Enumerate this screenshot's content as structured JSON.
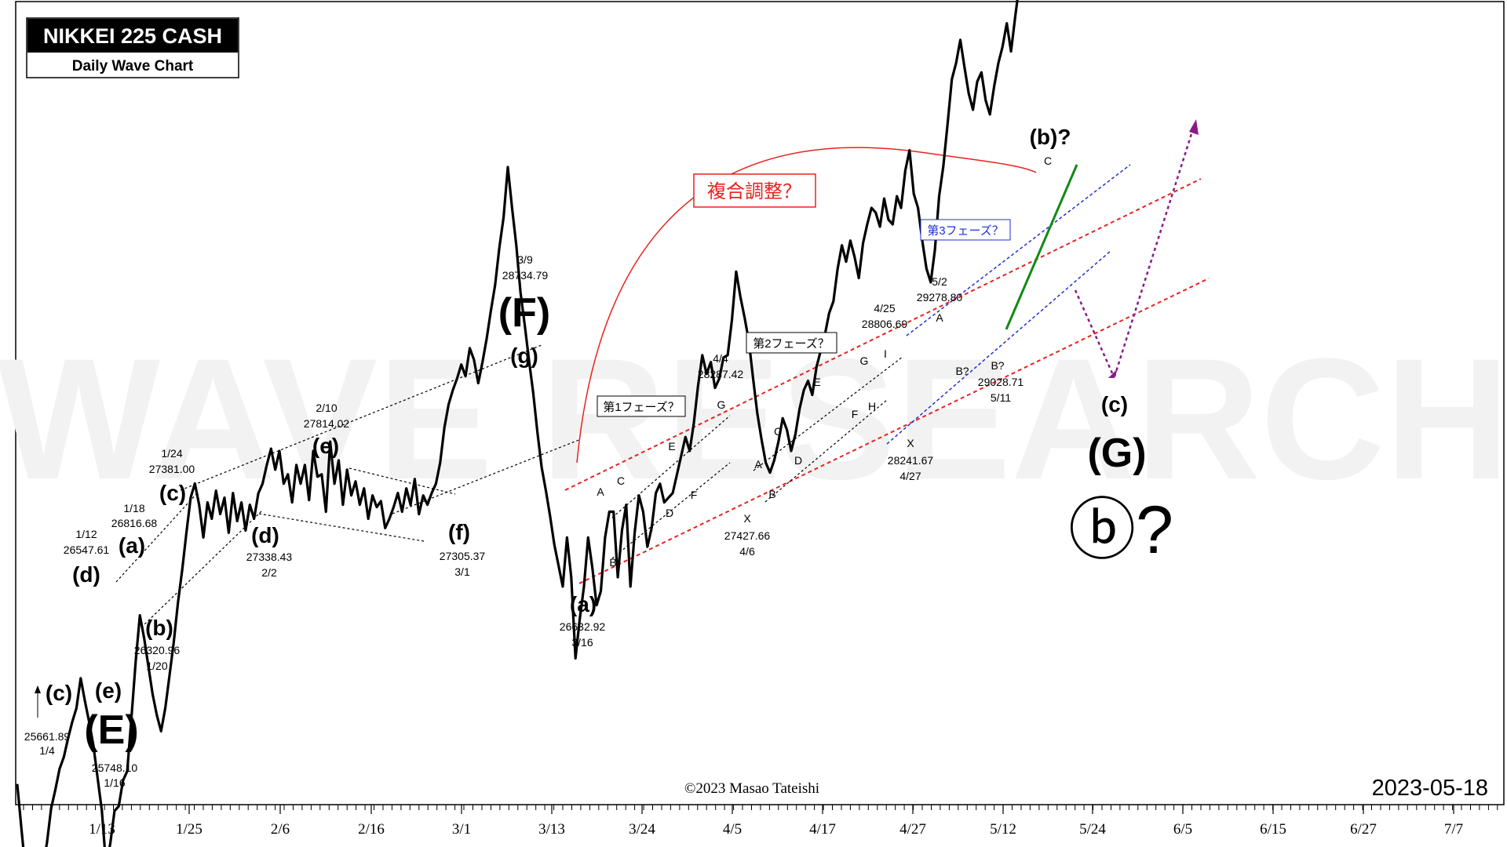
{
  "title_box": {
    "title": "NIKKEI 225 CASH",
    "subtitle": "Daily Wave Chart"
  },
  "watermark": "WAVE RESEARCH",
  "copyright": "©2023 Masao Tateishi",
  "chart_date": "2023-05-18",
  "colors": {
    "price": "#000000",
    "red_channel": "#e8221f",
    "blue_channel": "#1f2fd6",
    "green_line": "#128a12",
    "purple_arrow": "#8a1a8a",
    "complex_label": "#e8221f",
    "phase3_label": "#1f2fd6"
  },
  "chart_data": {
    "type": "line",
    "title": "NIKKEI 225 CASH",
    "subtitle": "Daily Wave Chart",
    "xlabel": "",
    "ylabel": "",
    "x_ticks": [
      "1/13",
      "1/25",
      "2/6",
      "2/16",
      "3/1",
      "3/13",
      "3/24",
      "4/5",
      "4/17",
      "4/27",
      "5/12",
      "5/24",
      "6/5",
      "6/15",
      "6/27",
      "7/7"
    ],
    "series": [
      {
        "values": [
          26094,
          25900,
          25716,
          25661.89,
          25790,
          25720,
          25748.1,
          25840,
          25990,
          26070,
          26160,
          26210,
          26290,
          26360,
          26420,
          26547.61,
          26450,
          26360,
          26260,
          26120,
          25980,
          25748.1,
          25840,
          25980,
          26000,
          26110,
          26150,
          26380,
          26620,
          26816.68,
          26720,
          26600,
          26480,
          26390,
          26320.96,
          26420,
          26560,
          26700,
          26870,
          27010,
          27170,
          27320,
          27381,
          27290,
          27150,
          27300,
          27230,
          27350,
          27250,
          27320,
          27170,
          27340,
          27220,
          27300,
          27180,
          27290,
          27230,
          27338.43,
          27380,
          27460,
          27530,
          27440,
          27520,
          27380,
          27420,
          27300,
          27460,
          27380,
          27460,
          27310,
          27520,
          27410,
          27420,
          27260,
          27560,
          27380,
          27480,
          27290,
          27440,
          27330,
          27390,
          27290,
          27360,
          27230,
          27330,
          27280,
          27305.37,
          27190,
          27230,
          27280,
          27340,
          27260,
          27360,
          27290,
          27400,
          27250,
          27330,
          27290,
          27340,
          27380,
          27470,
          27620,
          27720,
          27780,
          27830,
          27890,
          27840,
          27960,
          27910,
          27810,
          27900,
          28000,
          28120,
          28230,
          28390,
          28520,
          28734.79,
          28560,
          28400,
          28200,
          28060,
          27910,
          27770,
          27600,
          27450,
          27350,
          27240,
          27120,
          27030,
          26940,
          27150,
          26980,
          26632.92,
          26800,
          26940,
          27150,
          27020,
          26860,
          26920,
          27150,
          27260,
          27260,
          26980,
          27180,
          27290,
          26940,
          27170,
          27330,
          27260,
          27110,
          27190,
          27340,
          27380,
          27300,
          27320,
          27340,
          27420,
          27500,
          27580,
          27520,
          27640,
          27800,
          27930,
          27850,
          27900,
          27790,
          27830,
          27920,
          27930,
          28080,
          28287.42,
          28180,
          28090,
          27990,
          27830,
          27680,
          27570,
          27470,
          27427.66,
          27480,
          27560,
          27660,
          27610,
          27520,
          27590,
          27700,
          27780,
          27820,
          27760,
          27880,
          27950,
          28020,
          28110,
          28160,
          28300,
          28400,
          28330,
          28420,
          28350,
          28260,
          28410,
          28490,
          28560,
          28540,
          28480,
          28600,
          28510,
          28490,
          28610,
          28560,
          28720,
          28806.69,
          28620,
          28560,
          28420,
          28300,
          28241.67,
          28380,
          28610,
          28740,
          28920,
          29110,
          29180,
          29278.8,
          29160,
          29050,
          28980,
          29100,
          29140,
          29020,
          28960,
          29080,
          29180,
          29250,
          29350,
          29230,
          29380,
          29520,
          29620,
          29880,
          30020,
          29960,
          30140,
          30240,
          30540,
          30650
        ]
      }
    ],
    "annotations": [
      {
        "date": "1/4",
        "value": "25661.89",
        "wave": "(c)"
      },
      {
        "date": "1/12",
        "value": "26547.61",
        "wave": "(d)"
      },
      {
        "date": "1/16",
        "value": "25748.10",
        "wave": "(e)"
      },
      {
        "date": "1/18",
        "value": "26816.68",
        "wave": "(a)"
      },
      {
        "date": "1/20",
        "value": "26320.96",
        "wave": "(b)"
      },
      {
        "date": "1/24",
        "value": "27381.00",
        "wave": "(c)"
      },
      {
        "date": "2/2",
        "value": "27338.43",
        "wave": "(d)"
      },
      {
        "date": "2/10",
        "value": "27814.02",
        "wave": "(e)"
      },
      {
        "date": "3/1",
        "value": "27305.37",
        "wave": "(f)"
      },
      {
        "date": "3/9",
        "value": "28734.79",
        "wave": "(g)"
      },
      {
        "date": "3/16",
        "value": "26632.92",
        "wave": "(a)"
      },
      {
        "date": "4/4",
        "value": "28287.42",
        "wave": ""
      },
      {
        "date": "4/6",
        "value": "27427.66",
        "wave": "X"
      },
      {
        "date": "4/25",
        "value": "28806.69",
        "wave": ""
      },
      {
        "date": "4/27",
        "value": "28241.67",
        "wave": "X"
      },
      {
        "date": "5/2",
        "value": "29278.80",
        "wave": "A"
      },
      {
        "date": "5/11",
        "value": "29028.71",
        "wave": "B?"
      }
    ]
  },
  "wave_labels": {
    "c_low": "(c)",
    "e_low": "(e)",
    "E_big": "(E)",
    "d_low": "(d)",
    "a_low": "(a)",
    "b_low": "(b)",
    "c_up": "(c)",
    "d_mid": "(d)",
    "e_mid": "(e)",
    "f_mid": "(f)",
    "F_big": "(F)",
    "g_top": "(g)",
    "a_march": "(a)",
    "b_q": "(b)?",
    "c_small": "C",
    "c_future": "(c)",
    "G_big": "(G)",
    "circled_b": "ⓑ?"
  },
  "price_notes": {
    "n_25661": "25661.89",
    "n_0104": "1/4",
    "n_25748": "25748.10",
    "n_0116": "1/16",
    "n_0112": "1/12",
    "n_26547": "26547.61",
    "n_0118": "1/18",
    "n_26816": "26816.68",
    "n_26320": "26320.96",
    "n_0120": "1/20",
    "n_0124": "1/24",
    "n_27381": "27381.00",
    "n_27338": "27338.43",
    "n_0202": "2/2",
    "n_0210": "2/10",
    "n_27814": "27814.02",
    "n_27305": "27305.37",
    "n_0301": "3/1",
    "n_0309": "3/9",
    "n_28734": "28734.79",
    "n_26632": "26632.92",
    "n_0316": "3/16",
    "n_0404": "4/4",
    "n_28287": "28287.42",
    "n_27427": "27427.66",
    "n_0406": "4/6",
    "n_0425": "4/25",
    "n_28806": "28806.69",
    "n_28241": "28241.67",
    "n_0427": "4/27",
    "n_0502": "5/2",
    "n_29278": "29278.80",
    "n_29028": "29028.71",
    "n_0511": "5/11"
  },
  "sub_waves": {
    "p1_A": "A",
    "p1_B": "B",
    "p1_C": "C",
    "p1_D": "D",
    "p1_E": "E",
    "p1_F": "F",
    "p1_G": "G",
    "X1": "X",
    "p2_A": "A",
    "p2_B": "B",
    "p2_C": "C",
    "p2_D": "D",
    "p2_E": "E",
    "p2_F": "F",
    "p2_G": "G",
    "p2_H": "H",
    "p2_I": "I",
    "X2": "X",
    "p3_A": "A",
    "p3_B1": "B?",
    "p3_B2": "B?"
  },
  "boxes": {
    "phase1": "第1フェーズ？",
    "phase2": "第2フェーズ？",
    "phase3": "第3フェーズ？",
    "complex": "複合調整？"
  }
}
